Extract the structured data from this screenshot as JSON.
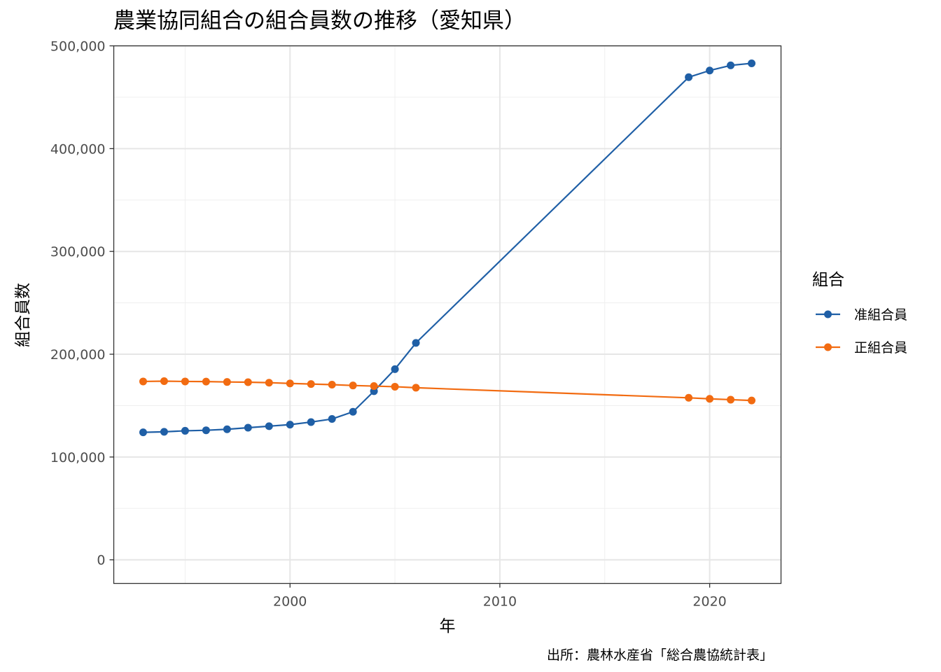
{
  "chart_data": {
    "type": "line",
    "title": "農業協同組合の組合員数の推移（愛知県）",
    "xlabel": "年",
    "ylabel": "組合員数",
    "caption": "出所：農林水産省「総合農協統計表」",
    "legend_title": "組合",
    "legend_position": "right",
    "grid": true,
    "xlim": [
      1991.6,
      2023.4
    ],
    "ylim": [
      -23000,
      500000
    ],
    "x_ticks": [
      2000,
      2010,
      2020
    ],
    "y_ticks": [
      0,
      100000,
      200000,
      300000,
      400000,
      500000
    ],
    "y_tick_labels": [
      "0",
      "100,000",
      "200,000",
      "300,000",
      "400,000",
      "500,000"
    ],
    "series": [
      {
        "name": "准組合員",
        "color": "#1f5fa6",
        "x": [
          1993,
          1994,
          1995,
          1996,
          1997,
          1998,
          1999,
          2000,
          2001,
          2002,
          2003,
          2004,
          2005,
          2006,
          2019,
          2020,
          2021,
          2022
        ],
        "values": [
          124000,
          124500,
          125500,
          126000,
          127000,
          128500,
          130000,
          131500,
          134000,
          137000,
          144000,
          164000,
          185500,
          211000,
          469500,
          476000,
          481000,
          483000
        ]
      },
      {
        "name": "正組合員",
        "color": "#f26b11",
        "x": [
          1993,
          1994,
          1995,
          1996,
          1997,
          1998,
          1999,
          2000,
          2001,
          2002,
          2003,
          2004,
          2005,
          2006,
          2019,
          2020,
          2021,
          2022
        ],
        "values": [
          173500,
          173800,
          173500,
          173400,
          173000,
          172800,
          172300,
          171600,
          171000,
          170400,
          169600,
          169000,
          168400,
          167400,
          157600,
          156600,
          155800,
          155000
        ]
      }
    ]
  }
}
